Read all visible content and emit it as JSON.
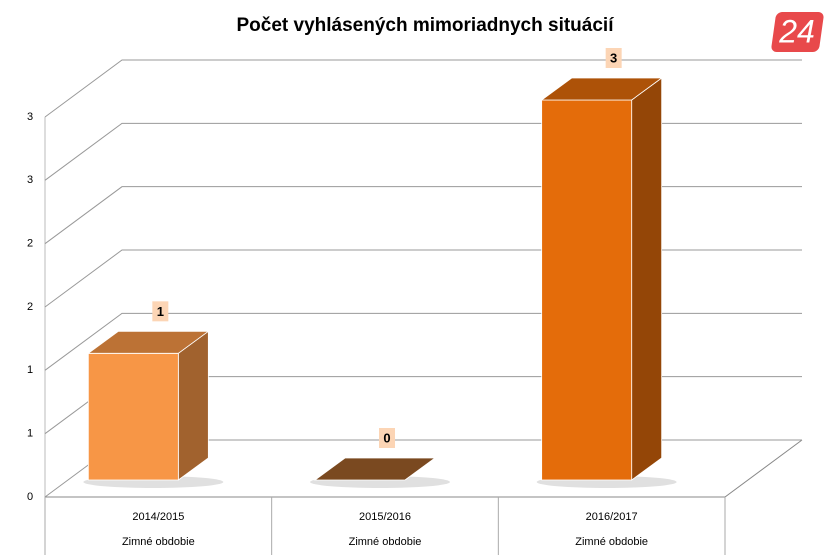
{
  "chart_data": {
    "type": "bar3d",
    "title": "Počet vyhlásených mimoriadnych situácií",
    "logo": "24",
    "categories": [
      "2014/2015",
      "2015/2016",
      "2016/2017"
    ],
    "sublabels": [
      "Zimné obdobie",
      "Zimné obdobie",
      "Zimné obdobie"
    ],
    "values": [
      1,
      0,
      3
    ],
    "colors": [
      "#f79646",
      "#a0602a",
      "#e46c0a"
    ],
    "ylim": [
      0,
      3
    ],
    "yticks": [
      0,
      {
        "value": 0.5,
        "label": "1"
      },
      1,
      {
        "value": 1.5,
        "label": "2"
      },
      2,
      {
        "value": 2.5,
        "label": "3"
      },
      3
    ],
    "grid": true
  }
}
